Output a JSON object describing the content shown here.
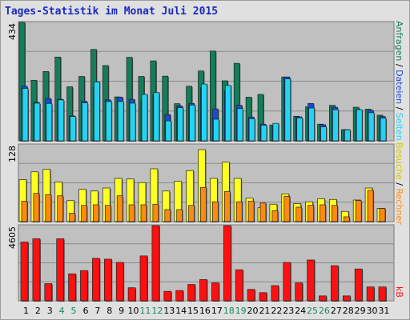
{
  "page": {
    "title": "Tages-Statistik im Monat Juli 2015"
  },
  "colors": {
    "background": "#e0e0e0",
    "plot_bg": "#c0c0c0",
    "title": "#1a2ac0",
    "weekend_day": "#1a8a5a",
    "weekday_day": "#000000",
    "anfragen": "#127e5a",
    "dateien": "#1a4ad8",
    "seiten": "#22d4f4",
    "besuche": "#ffff22",
    "rechner": "#ff8a10",
    "kb": "#ff1010"
  },
  "legend": {
    "anfragen": "Anfragen",
    "dateien": "Dateien",
    "seiten": "Seiten",
    "besuche": "Besuche",
    "rechner": "Rechner",
    "kb": "kB"
  },
  "weekend_days": [
    4,
    5,
    11,
    12,
    18,
    19,
    25,
    26
  ],
  "chart_data": [
    {
      "type": "bar",
      "panel": "top",
      "ymax_label": "434",
      "ylim": [
        0,
        434
      ],
      "grid": true,
      "categories": [
        "1",
        "2",
        "3",
        "4",
        "5",
        "6",
        "7",
        "8",
        "9",
        "10",
        "11",
        "12",
        "13",
        "14",
        "15",
        "16",
        "17",
        "18",
        "19",
        "20",
        "21",
        "22",
        "23",
        "24",
        "25",
        "26",
        "27",
        "28",
        "29",
        "30",
        "31"
      ],
      "series": [
        {
          "name": "Anfragen",
          "values": [
            434,
            222,
            254,
            307,
            198,
            236,
            335,
            276,
            161,
            306,
            236,
            293,
            237,
            136,
            200,
            256,
            329,
            220,
            284,
            160,
            170,
            58,
            234,
            90,
            125,
            61,
            130,
            41,
            123,
            116,
            94
          ]
        },
        {
          "name": "Dateien",
          "values": [
            200,
            141,
            155,
            152,
            91,
            145,
            195,
            150,
            160,
            152,
            146,
            170,
            96,
            128,
            137,
            195,
            117,
            181,
            130,
            87,
            61,
            53,
            234,
            88,
            137,
            59,
            123,
            41,
            114,
            112,
            89
          ]
        },
        {
          "name": "Seiten",
          "values": [
            192,
            138,
            137,
            150,
            89,
            139,
            216,
            144,
            144,
            138,
            170,
            177,
            73,
            121,
            131,
            208,
            79,
            203,
            118,
            81,
            57,
            64,
            227,
            84,
            120,
            51,
            114,
            40,
            114,
            103,
            83
          ]
        }
      ]
    },
    {
      "type": "bar",
      "panel": "middle",
      "ymax_label": "128",
      "ylim": [
        0,
        128
      ],
      "grid": true,
      "categories": [
        "1",
        "2",
        "3",
        "4",
        "5",
        "6",
        "7",
        "8",
        "9",
        "10",
        "11",
        "12",
        "13",
        "14",
        "15",
        "16",
        "17",
        "18",
        "19",
        "20",
        "21",
        "22",
        "23",
        "24",
        "25",
        "26",
        "27",
        "28",
        "29",
        "30",
        "31"
      ],
      "series": [
        {
          "name": "Besuche",
          "values": [
            70,
            83,
            87,
            66,
            35,
            54,
            51,
            56,
            72,
            71,
            65,
            88,
            51,
            67,
            85,
            120,
            72,
            99,
            72,
            39,
            23,
            29,
            46,
            30,
            33,
            38,
            37,
            17,
            36,
            56,
            22
          ]
        },
        {
          "name": "Rechner",
          "values": [
            34,
            47,
            45,
            43,
            14,
            27,
            28,
            27,
            43,
            28,
            28,
            29,
            20,
            20,
            27,
            57,
            33,
            50,
            33,
            34,
            31,
            18,
            42,
            24,
            27,
            28,
            27,
            8,
            35,
            52,
            22
          ]
        }
      ]
    },
    {
      "type": "bar",
      "panel": "bottom",
      "ymax_label": "4605",
      "ylim": [
        0,
        4605
      ],
      "grid": true,
      "categories": [
        "1",
        "2",
        "3",
        "4",
        "5",
        "6",
        "7",
        "8",
        "9",
        "10",
        "11",
        "12",
        "13",
        "14",
        "15",
        "16",
        "17",
        "18",
        "19",
        "20",
        "21",
        "22",
        "23",
        "24",
        "25",
        "26",
        "27",
        "28",
        "29",
        "30",
        "31"
      ],
      "series": [
        {
          "name": "kB",
          "values": [
            3600,
            3800,
            1050,
            3800,
            1650,
            1850,
            2600,
            2550,
            2350,
            800,
            2750,
            4605,
            580,
            630,
            1000,
            1300,
            1100,
            4600,
            1900,
            700,
            500,
            930,
            2350,
            1100,
            2500,
            300,
            2150,
            300,
            1950,
            850,
            850
          ]
        }
      ]
    }
  ]
}
